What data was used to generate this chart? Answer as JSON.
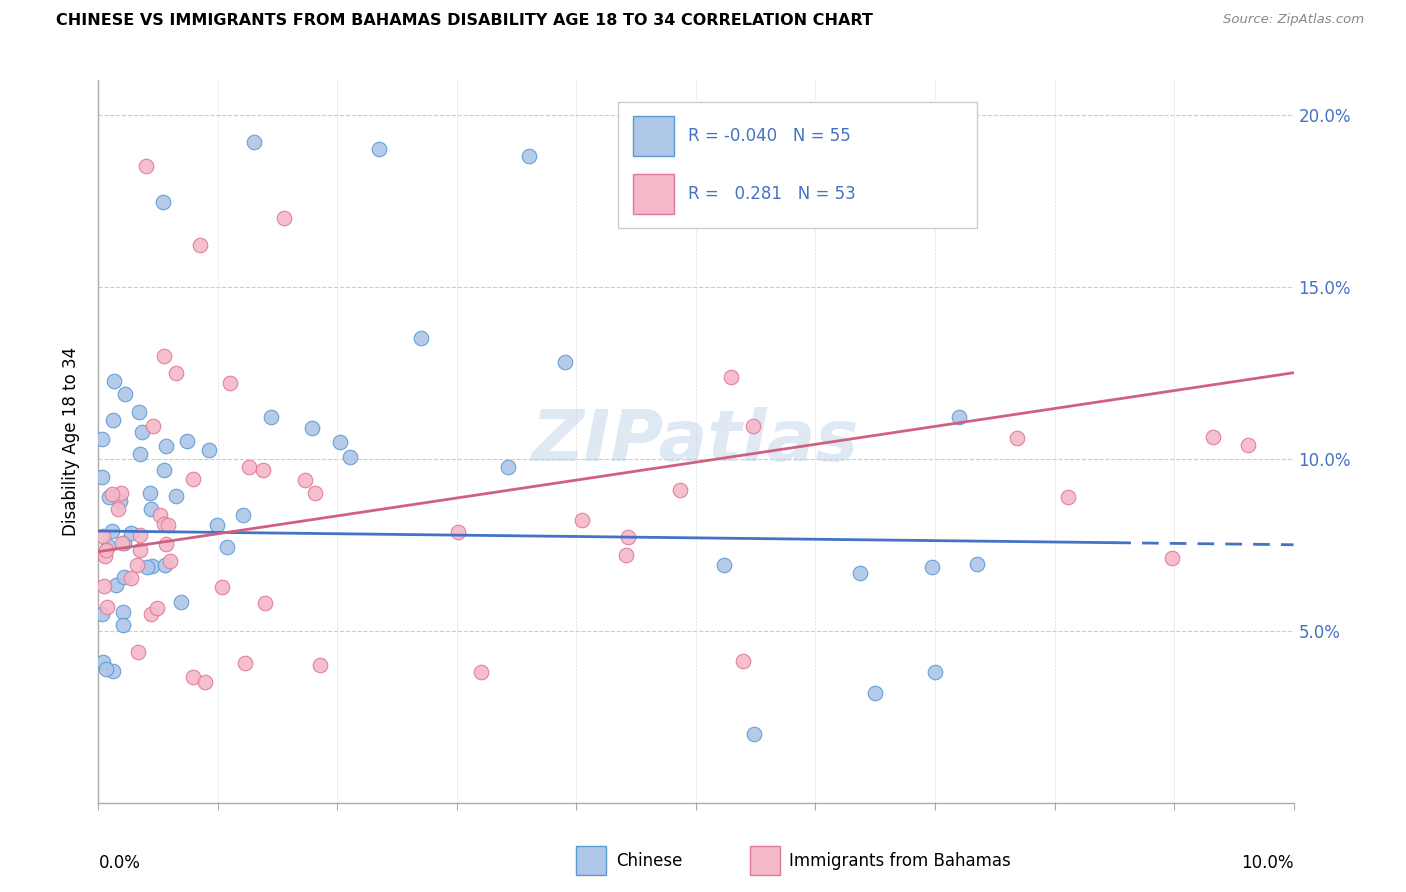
{
  "title": "CHINESE VS IMMIGRANTS FROM BAHAMAS DISABILITY AGE 18 TO 34 CORRELATION CHART",
  "source": "Source: ZipAtlas.com",
  "ylabel": "Disability Age 18 to 34",
  "xlim": [
    0.0,
    10.0
  ],
  "ylim": [
    0.0,
    21.0
  ],
  "watermark": "ZIPatlas",
  "chinese_color": "#aec6e8",
  "bahamas_color": "#f4b8c8",
  "chinese_edge": "#5b9bd5",
  "bahamas_edge": "#e07898",
  "trend_chinese_color": "#4472c4",
  "trend_bahamas_color": "#d06080",
  "legend_text_color": "#4472c4",
  "chinese_R": -0.04,
  "chinese_N": 55,
  "bahamas_R": 0.281,
  "bahamas_N": 53,
  "trend_chinese_y0": 7.9,
  "trend_chinese_y1": 7.5,
  "trend_bahamas_y0": 7.3,
  "trend_bahamas_y1": 12.5
}
